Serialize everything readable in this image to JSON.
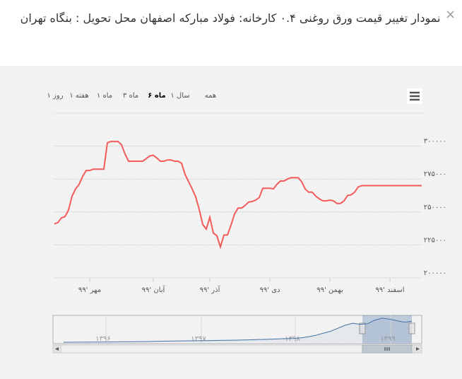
{
  "header": {
    "title": "نمودار تغییر قیمت ورق روغنی ۰.۴ کارخانه: فولاد مبارکه اصفهان محل تحویل : بنگاه تهران",
    "close": "×"
  },
  "chart_data": {
    "type": "line",
    "range_buttons": [
      "همه",
      "۱ سال",
      "۶ ماه",
      "۳ ماه",
      "۱ ماه",
      "۱ هفته",
      "۱ روز"
    ],
    "selected_button": 2,
    "color": "#f45b5b",
    "categories": [
      null,
      null,
      null,
      null,
      null,
      null,
      null,
      null,
      null,
      null,
      "مهر '۹۹",
      null,
      null,
      null,
      null,
      null,
      null,
      null,
      null,
      null,
      null,
      null,
      null,
      null,
      null,
      null,
      null,
      null,
      "آبان '۹۹",
      null,
      null,
      null,
      null,
      null,
      null,
      null,
      null,
      null,
      null,
      null,
      null,
      null,
      null,
      null,
      "آذر '۹۹",
      null,
      null,
      null,
      null,
      null,
      null,
      null,
      null,
      null,
      null,
      null,
      null,
      null,
      null,
      null,
      null,
      "دی '۹۹",
      null,
      null,
      null,
      null,
      null,
      null,
      null,
      null,
      null,
      null,
      null,
      null,
      null,
      null,
      null,
      null,
      "بهمن '۹۹",
      null,
      null,
      null,
      null,
      null,
      null,
      null,
      null,
      null,
      null,
      null,
      null,
      null,
      null,
      null,
      null,
      "اسفند '۹۹",
      null,
      null,
      null,
      null,
      null,
      null,
      null,
      null,
      null
    ],
    "values": [
      241000,
      242000,
      245500,
      246500,
      251500,
      262000,
      267500,
      271000,
      277000,
      281500,
      281500,
      282500,
      282500,
      282500,
      282500,
      302500,
      303500,
      303500,
      303500,
      301000,
      294000,
      288500,
      288500,
      288500,
      288500,
      288500,
      290500,
      292500,
      293000,
      291000,
      288500,
      288500,
      289500,
      289500,
      288500,
      288500,
      287000,
      278500,
      273000,
      267500,
      261500,
      252000,
      240500,
      237000,
      246000,
      234000,
      232000,
      223500,
      232500,
      232500,
      240000,
      248500,
      253000,
      253000,
      255000,
      257500,
      258000,
      259000,
      261000,
      268000,
      268000,
      268000,
      267500,
      271000,
      273500,
      273500,
      275000,
      276000,
      276000,
      276000,
      273000,
      267500,
      265000,
      265000,
      262000,
      260000,
      258500,
      258500,
      259000,
      258500,
      256500,
      256500,
      258500,
      262500,
      263000,
      265000,
      269000,
      270000,
      270000,
      270000,
      270000,
      270000,
      270000,
      270000,
      270000,
      270000,
      270000,
      270000,
      270000,
      270000,
      270000,
      270000,
      270000,
      270000,
      270000
    ],
    "ylim": [
      200000,
      325000
    ],
    "yticks": [
      {
        "value": 200000,
        "label": "۲۰۰۰۰۰"
      },
      {
        "value": 225000,
        "label": "۲۲۵۰۰۰"
      },
      {
        "value": 250000,
        "label": "۲۵۰۰۰۰"
      },
      {
        "value": 275000,
        "label": "۲۷۵۰۰۰"
      },
      {
        "value": 300000,
        "label": "۳۰۰۰۰۰"
      }
    ],
    "grid": true,
    "navigator": {
      "color": "#4572a7",
      "labels": [
        "۱۳۹۶",
        "۱۳۹۷",
        "۱۳۹۸",
        "۱۳۹۹"
      ],
      "values": [
        62000,
        62000,
        63000,
        63000,
        64000,
        64000,
        65000,
        65000,
        66000,
        66000,
        67000,
        68000,
        70000,
        72000,
        73000,
        74000,
        75000,
        76000,
        77000,
        78000,
        79000,
        80000,
        81000,
        82000,
        84000,
        86000,
        88000,
        90000,
        92000,
        95000,
        98000,
        100000,
        105000,
        115000,
        130000,
        150000,
        170000,
        200000,
        230000,
        250000,
        240000,
        245000,
        280000,
        300000,
        290000,
        275000,
        260000,
        270000
      ]
    }
  }
}
